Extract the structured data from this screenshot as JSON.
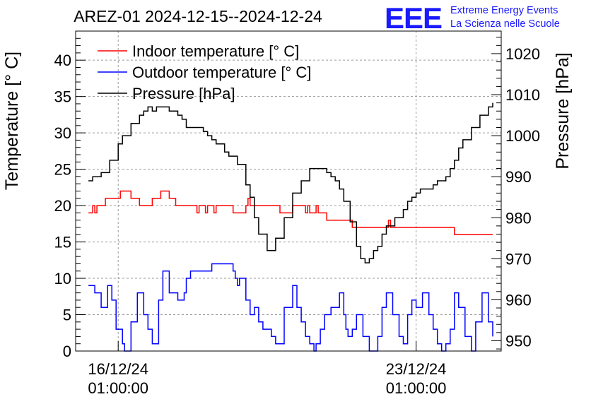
{
  "chart_data": {
    "type": "line",
    "title": "AREZ-01 2024-12-15--2024-12-24",
    "brand": {
      "logo_text": "EEE",
      "line1": "Extreme Energy Events",
      "line2": "La Scienza nelle Scuole",
      "color": "#1a1aff"
    },
    "ylabel_left": "Temperature [° C]",
    "ylabel_right": "Pressure [hPa]",
    "ylim_left": [
      0,
      44
    ],
    "ylim_right": [
      947.5,
      1025.5
    ],
    "yticks_left": [
      0,
      5,
      10,
      15,
      20,
      25,
      30,
      35,
      40
    ],
    "yticks_right": [
      950,
      960,
      970,
      980,
      990,
      1000,
      1010,
      1020
    ],
    "x_range": [
      0,
      10
    ],
    "xticks": [
      {
        "x": 1.0,
        "date": "16/12/24",
        "time": "01:00:00"
      },
      {
        "x": 8.0,
        "date": "23/12/24",
        "time": "01:00:00"
      }
    ],
    "grid": true,
    "legend_position": "top-left",
    "series": [
      {
        "name": "Indoor temperature [° C]",
        "color": "#ff0000",
        "axis": "left",
        "x": [
          0.3,
          0.4,
          0.45,
          0.5,
          0.6,
          0.7,
          0.8,
          1.05,
          1.2,
          1.3,
          1.4,
          1.5,
          1.7,
          1.8,
          1.9,
          2.0,
          2.05,
          2.1,
          2.2,
          2.3,
          2.35,
          2.4,
          2.5,
          2.6,
          2.7,
          2.8,
          2.85,
          2.9,
          3.0,
          3.05,
          3.1,
          3.15,
          3.2,
          3.25,
          3.3,
          3.4,
          3.5,
          3.6,
          3.65,
          3.7,
          3.8,
          3.9,
          4.0,
          4.05,
          4.1,
          4.2,
          4.3,
          4.5,
          4.6,
          4.8,
          5.0,
          5.1,
          5.2,
          5.25,
          5.3,
          5.35,
          5.4,
          5.45,
          5.5,
          5.6,
          5.65,
          5.7,
          5.8,
          5.9,
          6.3,
          6.5,
          6.7,
          7.0,
          7.3,
          7.35,
          7.4,
          7.6,
          7.8,
          7.9,
          8.0,
          8.3,
          8.9,
          9.8
        ],
        "y": [
          19,
          20,
          19,
          20,
          20,
          21,
          21,
          22,
          22,
          21,
          21,
          20,
          20,
          21,
          21,
          22,
          22,
          22,
          21,
          21,
          20,
          20,
          20,
          20,
          20,
          20,
          19,
          20,
          20,
          19,
          20,
          20,
          20,
          19,
          20,
          20,
          20,
          20,
          20,
          19,
          19,
          19,
          20,
          21,
          20,
          20,
          20,
          20,
          20,
          19,
          19,
          20,
          20,
          20,
          20,
          20,
          19,
          20,
          19,
          19,
          20,
          19,
          19,
          18,
          18,
          17,
          17,
          17,
          17,
          18,
          17,
          17,
          17,
          17,
          17,
          17,
          16,
          16
        ]
      },
      {
        "name": "Outdoor temperature [° C]",
        "color": "#0000ff",
        "axis": "left",
        "x": [
          0.3,
          0.45,
          0.6,
          0.75,
          0.85,
          0.95,
          1.1,
          1.15,
          1.3,
          1.45,
          1.6,
          1.7,
          1.8,
          1.95,
          2.05,
          2.2,
          2.4,
          2.55,
          2.6,
          2.7,
          2.8,
          2.9,
          3.1,
          3.2,
          3.35,
          3.5,
          3.6,
          3.7,
          3.75,
          3.8,
          3.85,
          4.0,
          4.1,
          4.2,
          4.3,
          4.4,
          4.5,
          4.6,
          4.7,
          4.9,
          5.1,
          5.2,
          5.3,
          5.4,
          5.5,
          5.6,
          5.65,
          5.75,
          5.85,
          6.0,
          6.2,
          6.3,
          6.35,
          6.4,
          6.5,
          6.6,
          6.75,
          6.9,
          7.0,
          7.1,
          7.2,
          7.3,
          7.45,
          7.6,
          7.7,
          7.8,
          7.9,
          8.0,
          8.15,
          8.3,
          8.4,
          8.5,
          8.6,
          8.7,
          8.8,
          8.9,
          9.0,
          9.15,
          9.3,
          9.4,
          9.55,
          9.7,
          9.8
        ],
        "y": [
          9,
          8,
          6,
          9,
          7,
          3,
          1,
          0,
          4,
          8,
          5,
          3,
          1,
          7,
          11,
          8,
          7,
          8,
          10,
          11,
          11,
          11,
          11,
          12,
          12,
          12,
          12,
          11,
          10,
          9,
          10,
          7,
          5,
          6,
          4,
          3,
          3,
          2,
          1,
          6,
          9,
          6,
          4,
          2,
          1,
          0,
          1,
          3,
          5,
          6,
          8,
          5,
          3,
          2,
          3,
          5,
          2,
          0,
          0,
          2,
          6,
          8,
          5,
          2,
          1,
          5,
          7,
          6,
          8,
          5,
          3,
          1,
          0,
          1,
          3,
          8,
          6,
          2,
          0,
          4,
          8,
          4,
          2
        ]
      },
      {
        "name": "Pressure [hPa]",
        "color": "#000000",
        "axis": "right",
        "x": [
          0.3,
          0.4,
          0.6,
          0.8,
          1.0,
          1.1,
          1.3,
          1.5,
          1.6,
          1.7,
          1.8,
          1.9,
          2.0,
          2.2,
          2.4,
          2.5,
          2.6,
          2.8,
          2.9,
          3.0,
          3.1,
          3.2,
          3.3,
          3.5,
          3.6,
          3.8,
          4.0,
          4.1,
          4.2,
          4.3,
          4.5,
          4.7,
          4.9,
          5.1,
          5.3,
          5.5,
          5.6,
          5.8,
          5.9,
          6.0,
          6.1,
          6.2,
          6.3,
          6.45,
          6.6,
          6.7,
          6.8,
          6.9,
          7.0,
          7.1,
          7.2,
          7.3,
          7.5,
          7.7,
          7.8,
          7.9,
          8.0,
          8.1,
          8.2,
          8.4,
          8.5,
          8.7,
          8.8,
          8.9,
          9.0,
          9.1,
          9.3,
          9.5,
          9.7,
          9.8
        ],
        "y": [
          989,
          990,
          991,
          994,
          998,
          1000,
          1003,
          1005,
          1006,
          1007,
          1006,
          1007,
          1007,
          1006,
          1005,
          1004,
          1002,
          1002,
          1002,
          1001,
          1000,
          999,
          998,
          996,
          995,
          993,
          988,
          985,
          980,
          976,
          972,
          975,
          980,
          986,
          989,
          992,
          992,
          992,
          991,
          990,
          989,
          987,
          984,
          979,
          973,
          970,
          969,
          970,
          972,
          973,
          976,
          978,
          980,
          982,
          984,
          985,
          986,
          987,
          987,
          988,
          989,
          990,
          992,
          994,
          997,
          999,
          1002,
          1005,
          1007,
          1008
        ]
      }
    ]
  }
}
